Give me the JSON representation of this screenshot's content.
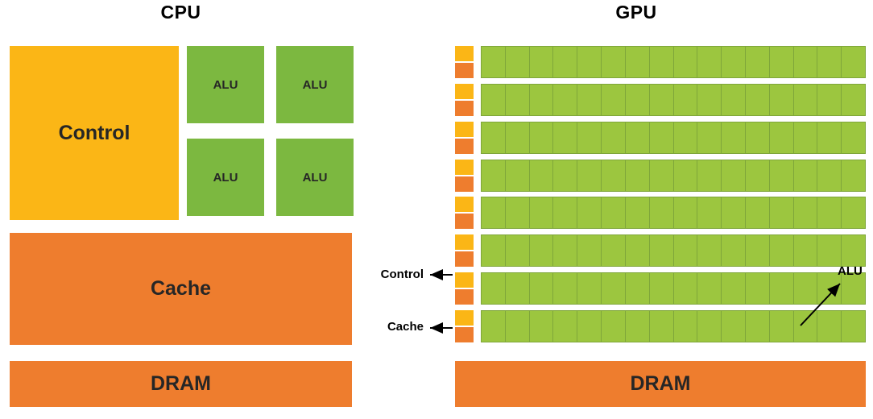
{
  "diagram": {
    "cpu": {
      "title": "CPU",
      "control_label": "Control",
      "alu_labels": [
        "ALU",
        "ALU",
        "ALU",
        "ALU"
      ],
      "cache_label": "Cache",
      "dram_label": "DRAM"
    },
    "gpu": {
      "title": "GPU",
      "control_label": "Control",
      "cache_label": "Cache",
      "alu_label": "ALU",
      "dram_label": "DRAM",
      "core_rows": 8,
      "core_cols": 16
    }
  },
  "colors": {
    "yellow": "#FBB616",
    "orange": "#EE7D2E",
    "green_cpu": "#7CB840",
    "green_gpu": "#9CC63F",
    "green_border": "#7FA63A",
    "text_dark": "#262626",
    "arrow": "#000000"
  }
}
